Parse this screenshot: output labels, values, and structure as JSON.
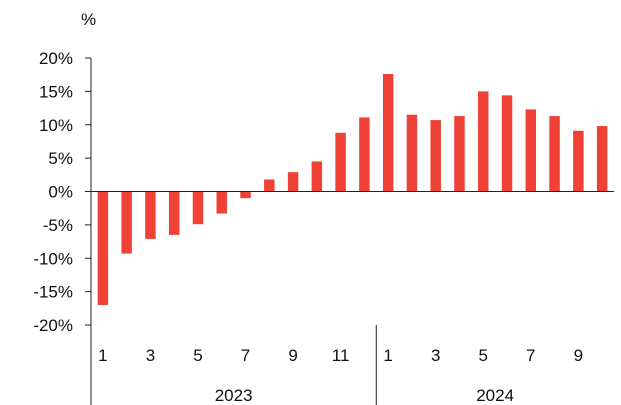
{
  "chart_data": {
    "type": "bar",
    "y_unit_label": "%",
    "ylim": [
      -20,
      20
    ],
    "y_ticks": [
      {
        "value": 20,
        "label": "20%"
      },
      {
        "value": 15,
        "label": "15%"
      },
      {
        "value": 10,
        "label": "10%"
      },
      {
        "value": 5,
        "label": "5%"
      },
      {
        "value": 0,
        "label": "0%"
      },
      {
        "value": -5,
        "label": "-5%"
      },
      {
        "value": -10,
        "label": "-10%"
      },
      {
        "value": -15,
        "label": "-15%"
      },
      {
        "value": -20,
        "label": "-20%"
      }
    ],
    "categories": [
      {
        "year": "2023",
        "month": "1",
        "value": -17.0
      },
      {
        "year": "2023",
        "month": "2",
        "value": -9.3
      },
      {
        "year": "2023",
        "month": "3",
        "value": -7.1
      },
      {
        "year": "2023",
        "month": "4",
        "value": -6.5
      },
      {
        "year": "2023",
        "month": "5",
        "value": -4.9
      },
      {
        "year": "2023",
        "month": "6",
        "value": -3.3
      },
      {
        "year": "2023",
        "month": "7",
        "value": -1.0
      },
      {
        "year": "2023",
        "month": "8",
        "value": 1.8
      },
      {
        "year": "2023",
        "month": "9",
        "value": 2.9
      },
      {
        "year": "2023",
        "month": "10",
        "value": 4.5
      },
      {
        "year": "2023",
        "month": "11",
        "value": 8.8
      },
      {
        "year": "2023",
        "month": "12",
        "value": 11.1
      },
      {
        "year": "2024",
        "month": "1",
        "value": 17.6
      },
      {
        "year": "2024",
        "month": "2",
        "value": 11.5
      },
      {
        "year": "2024",
        "month": "3",
        "value": 10.7
      },
      {
        "year": "2024",
        "month": "4",
        "value": 11.3
      },
      {
        "year": "2024",
        "month": "5",
        "value": 15.0
      },
      {
        "year": "2024",
        "month": "6",
        "value": 14.4
      },
      {
        "year": "2024",
        "month": "7",
        "value": 12.3
      },
      {
        "year": "2024",
        "month": "8",
        "value": 11.3
      },
      {
        "year": "2024",
        "month": "9",
        "value": 9.1
      },
      {
        "year": "2024",
        "month": "10",
        "value": 9.8
      }
    ],
    "x_month_labels": [
      "1",
      "3",
      "5",
      "7",
      "9",
      "11",
      "1",
      "3",
      "5",
      "7",
      "9"
    ],
    "x_year_labels": [
      "2023",
      "2024"
    ],
    "bar_color": "#EF4136",
    "grid": false,
    "legend": "none"
  }
}
